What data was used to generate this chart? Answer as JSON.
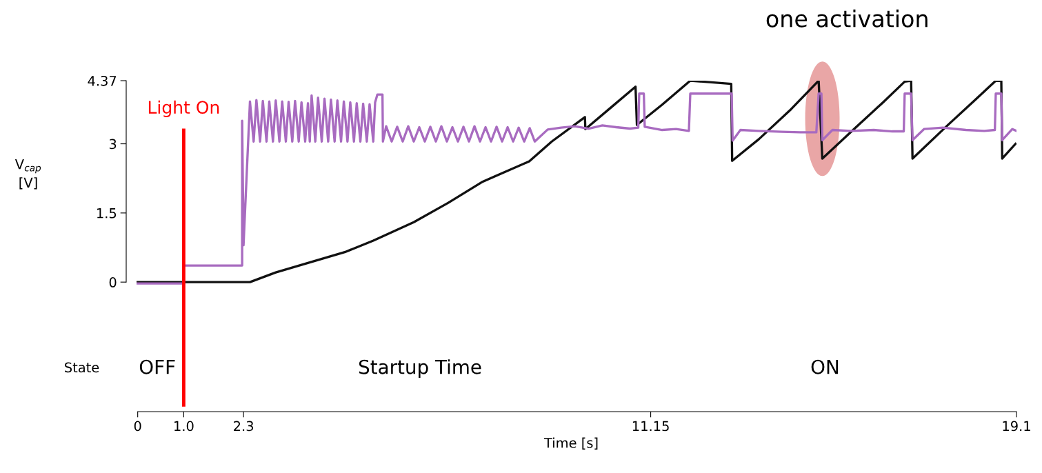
{
  "chart_data": {
    "type": "line",
    "ylabel": "V$_{cap}$\n[V]",
    "xlabel": "Time [s]",
    "xlim": [
      -0.25,
      19.1
    ],
    "ylim": [
      -2.81,
      4.37
    ],
    "yticks": [
      0,
      1.5,
      3,
      4.37
    ],
    "xticks": [
      0,
      {
        "value": 1,
        "label": "1.0"
      },
      2.3,
      11.15,
      19.1
    ],
    "series": [
      {
        "color": "#111111",
        "x": [
          0,
          2.44,
          3.0,
          3.75,
          4.5,
          5.12,
          6.0,
          6.75,
          7.5,
          8.51,
          9.0,
          9.72,
          9.73,
          10.3,
          10.82,
          10.85,
          11.4,
          12.01,
          12.9,
          12.92,
          13.5,
          14.2,
          14.8,
          14.88,
          15.6,
          16.2,
          16.67,
          16.81,
          16.84,
          17.6,
          18.2,
          18.65,
          18.77,
          18.79,
          19.08
        ],
        "values": [
          0,
          0,
          0.21,
          0.43,
          0.65,
          0.9,
          1.3,
          1.72,
          2.18,
          2.62,
          3.05,
          3.58,
          3.32,
          3.8,
          4.24,
          3.41,
          3.85,
          4.37,
          4.3,
          2.63,
          3.1,
          3.75,
          4.37,
          2.68,
          3.35,
          3.9,
          4.35,
          4.37,
          2.68,
          3.4,
          3.95,
          4.37,
          4.36,
          2.68,
          3.0
        ]
      },
      {
        "color": "#a86bc0",
        "x": [
          0,
          1.0,
          1.0,
          2.27,
          2.27,
          2.3,
          2.44,
          2.52,
          2.58,
          2.66,
          2.72,
          2.8,
          2.86,
          2.94,
          3.0,
          3.08,
          3.14,
          3.22,
          3.28,
          3.36,
          3.42,
          3.5,
          3.56,
          3.64,
          3.7,
          3.74,
          3.78,
          3.86,
          3.92,
          4.0,
          4.06,
          4.14,
          4.2,
          4.28,
          4.34,
          4.42,
          4.48,
          4.56,
          4.62,
          4.7,
          4.76,
          4.84,
          4.9,
          4.98,
          5.04,
          5.12,
          5.16,
          5.21,
          5.32,
          5.33,
          5.4,
          5.52,
          5.64,
          5.76,
          5.88,
          6.0,
          6.12,
          6.24,
          6.36,
          6.48,
          6.6,
          6.72,
          6.84,
          6.96,
          7.08,
          7.2,
          7.32,
          7.44,
          7.56,
          7.68,
          7.8,
          7.92,
          8.04,
          8.16,
          8.28,
          8.4,
          8.52,
          8.63,
          8.91,
          9.2,
          9.5,
          9.8,
          10.1,
          10.4,
          10.7,
          10.88,
          10.9,
          11.0,
          11.02,
          11.4,
          11.7,
          11.98,
          12.01,
          12.91,
          12.93,
          13.1,
          13.5,
          14.0,
          14.4,
          14.75,
          14.8,
          14.86,
          14.88,
          15.1,
          15.5,
          16.0,
          16.4,
          16.65,
          16.67,
          16.81,
          16.84,
          17.09,
          17.5,
          18.0,
          18.4,
          18.63,
          18.65,
          18.77,
          18.79,
          19.01,
          19.1
        ],
        "values": [
          -0.03,
          -0.03,
          0.36,
          0.36,
          3.5,
          0.8,
          3.92,
          3.05,
          3.95,
          3.05,
          3.93,
          3.05,
          3.92,
          3.05,
          3.94,
          3.05,
          3.92,
          3.05,
          3.91,
          3.05,
          3.93,
          3.05,
          3.9,
          3.05,
          3.88,
          3.05,
          4.05,
          3.05,
          4.0,
          3.05,
          3.98,
          3.05,
          3.96,
          3.05,
          3.94,
          3.05,
          3.92,
          3.05,
          3.9,
          3.05,
          3.88,
          3.05,
          3.87,
          3.05,
          3.86,
          3.05,
          3.9,
          4.07,
          4.07,
          3.05,
          3.38,
          3.05,
          3.37,
          3.05,
          3.38,
          3.05,
          3.36,
          3.05,
          3.37,
          3.05,
          3.38,
          3.05,
          3.36,
          3.05,
          3.37,
          3.05,
          3.38,
          3.05,
          3.36,
          3.05,
          3.37,
          3.05,
          3.36,
          3.05,
          3.35,
          3.05,
          3.34,
          3.05,
          3.31,
          3.35,
          3.38,
          3.33,
          3.4,
          3.36,
          3.33,
          3.35,
          4.09,
          4.09,
          3.37,
          3.3,
          3.32,
          3.28,
          4.09,
          4.09,
          3.07,
          3.3,
          3.28,
          3.26,
          3.25,
          3.25,
          4.09,
          4.09,
          3.08,
          3.3,
          3.28,
          3.3,
          3.27,
          3.27,
          4.09,
          4.09,
          3.08,
          3.32,
          3.35,
          3.3,
          3.28,
          3.3,
          4.09,
          4.09,
          3.08,
          3.32,
          3.28
        ]
      }
    ],
    "ref_lines": [
      {
        "axis": "x",
        "value": 1.0,
        "label": "Light On",
        "color": "#ff0000"
      }
    ],
    "annotations": [
      "one activation",
      "State",
      "OFF",
      "Startup Time",
      "ON"
    ]
  }
}
